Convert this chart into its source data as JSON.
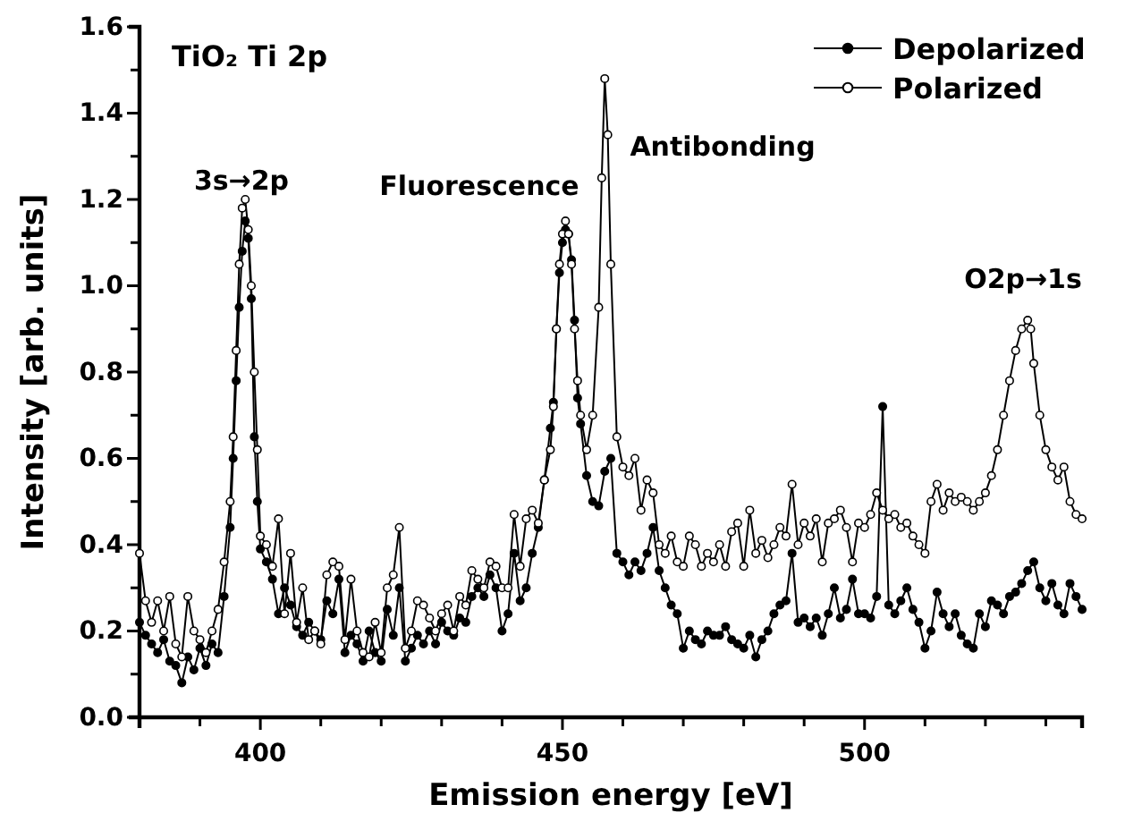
{
  "chart_data": {
    "type": "line",
    "title": "TiO₂ Ti 2p",
    "xlabel": "Emission energy [eV]",
    "ylabel": "Intensity [arb. units]",
    "xlim": [
      380,
      536
    ],
    "ylim": [
      0,
      1.6
    ],
    "xticks": [
      {
        "value": 390,
        "label": null
      },
      {
        "value": 400,
        "label": "400"
      },
      {
        "value": 410,
        "label": null
      },
      {
        "value": 420,
        "label": null
      },
      {
        "value": 430,
        "label": null
      },
      {
        "value": 440,
        "label": null
      },
      {
        "value": 450,
        "label": "450"
      },
      {
        "value": 460,
        "label": null
      },
      {
        "value": 470,
        "label": null
      },
      {
        "value": 480,
        "label": null
      },
      {
        "value": 490,
        "label": null
      },
      {
        "value": 500,
        "label": "500"
      },
      {
        "value": 510,
        "label": null
      },
      {
        "value": 520,
        "label": null
      },
      {
        "value": 530,
        "label": null
      }
    ],
    "yticks": [
      {
        "value": 0,
        "label": "0.0"
      },
      {
        "value": 0.1,
        "label": null
      },
      {
        "value": 0.2,
        "label": "0.2"
      },
      {
        "value": 0.3,
        "label": null
      },
      {
        "value": 0.4,
        "label": "0.4"
      },
      {
        "value": 0.5,
        "label": null
      },
      {
        "value": 0.6,
        "label": "0.6"
      },
      {
        "value": 0.7,
        "label": null
      },
      {
        "value": 0.8,
        "label": "0.8"
      },
      {
        "value": 0.9,
        "label": null
      },
      {
        "value": 1.0,
        "label": "1.0"
      },
      {
        "value": 1.1,
        "label": null
      },
      {
        "value": 1.2,
        "label": "1.2"
      },
      {
        "value": 1.3,
        "label": null
      },
      {
        "value": 1.4,
        "label": "1.4"
      },
      {
        "value": 1.5,
        "label": null
      },
      {
        "value": 1.6,
        "label": "1.6"
      }
    ],
    "grid": false,
    "legend": "top right",
    "marker": "circle",
    "line_style": "solid",
    "annotations": [
      "3s→2p",
      "Fluorescence",
      "Antibonding",
      "O2p→1s"
    ],
    "series": [
      {
        "name": "Depolarized",
        "color": "#000000",
        "x": [
          380,
          381,
          382,
          383,
          384,
          385,
          386,
          387,
          388,
          389,
          390,
          391,
          392,
          393,
          394,
          395,
          395.5,
          396,
          396.5,
          397,
          397.5,
          398,
          398.5,
          399,
          399.5,
          400,
          401,
          402,
          403,
          404,
          405,
          406,
          407,
          408,
          409,
          410,
          411,
          412,
          413,
          414,
          415,
          416,
          417,
          418,
          419,
          420,
          421,
          422,
          423,
          424,
          425,
          426,
          427,
          428,
          429,
          430,
          431,
          432,
          433,
          434,
          435,
          436,
          437,
          438,
          439,
          440,
          441,
          442,
          443,
          444,
          445,
          446,
          447,
          448,
          448.5,
          449,
          449.5,
          450,
          450.5,
          451,
          451.5,
          452,
          452.5,
          453,
          454,
          455,
          456,
          457,
          458,
          459,
          460,
          461,
          462,
          463,
          464,
          465,
          466,
          467,
          468,
          469,
          470,
          471,
          472,
          473,
          474,
          475,
          476,
          477,
          478,
          479,
          480,
          481,
          482,
          483,
          484,
          485,
          486,
          487,
          488,
          489,
          490,
          491,
          492,
          493,
          494,
          495,
          496,
          497,
          498,
          499,
          500,
          501,
          502,
          503,
          504,
          505,
          506,
          507,
          508,
          509,
          510,
          511,
          512,
          513,
          514,
          515,
          516,
          517,
          518,
          519,
          520,
          521,
          522,
          523,
          524,
          525,
          526,
          527,
          528,
          529,
          530,
          531,
          532,
          533,
          534,
          535,
          536
        ],
        "values": [
          0.22,
          0.19,
          0.17,
          0.15,
          0.18,
          0.13,
          0.12,
          0.08,
          0.14,
          0.11,
          0.16,
          0.12,
          0.17,
          0.15,
          0.28,
          0.44,
          0.6,
          0.78,
          0.95,
          1.08,
          1.15,
          1.11,
          0.97,
          0.65,
          0.5,
          0.39,
          0.36,
          0.32,
          0.24,
          0.3,
          0.26,
          0.21,
          0.19,
          0.22,
          0.2,
          0.18,
          0.27,
          0.24,
          0.32,
          0.15,
          0.19,
          0.17,
          0.13,
          0.2,
          0.15,
          0.13,
          0.25,
          0.19,
          0.3,
          0.13,
          0.16,
          0.19,
          0.17,
          0.2,
          0.17,
          0.22,
          0.2,
          0.19,
          0.23,
          0.22,
          0.28,
          0.3,
          0.28,
          0.33,
          0.3,
          0.2,
          0.24,
          0.38,
          0.27,
          0.3,
          0.38,
          0.44,
          0.55,
          0.67,
          0.73,
          0.9,
          1.03,
          1.1,
          1.13,
          1.12,
          1.06,
          0.92,
          0.74,
          0.68,
          0.56,
          0.5,
          0.49,
          0.57,
          0.6,
          0.38,
          0.36,
          0.33,
          0.36,
          0.34,
          0.38,
          0.44,
          0.34,
          0.3,
          0.26,
          0.24,
          0.16,
          0.2,
          0.18,
          0.17,
          0.2,
          0.19,
          0.19,
          0.21,
          0.18,
          0.17,
          0.16,
          0.19,
          0.14,
          0.18,
          0.2,
          0.24,
          0.26,
          0.27,
          0.38,
          0.22,
          0.23,
          0.21,
          0.23,
          0.19,
          0.24,
          0.3,
          0.23,
          0.25,
          0.32,
          0.24,
          0.24,
          0.23,
          0.28,
          0.72,
          0.26,
          0.24,
          0.27,
          0.3,
          0.25,
          0.22,
          0.16,
          0.2,
          0.29,
          0.24,
          0.21,
          0.24,
          0.19,
          0.17,
          0.16,
          0.24,
          0.21,
          0.27,
          0.26,
          0.24,
          0.28,
          0.29,
          0.31,
          0.34,
          0.36,
          0.3,
          0.27,
          0.31,
          0.26,
          0.24,
          0.31,
          0.28,
          0.25
        ]
      },
      {
        "name": "Polarized",
        "color": "#000000",
        "x": [
          380,
          381,
          382,
          383,
          384,
          385,
          386,
          387,
          388,
          389,
          390,
          391,
          392,
          393,
          394,
          395,
          395.5,
          396,
          396.5,
          397,
          397.5,
          398,
          398.5,
          399,
          399.5,
          400,
          401,
          402,
          403,
          404,
          405,
          406,
          407,
          408,
          409,
          410,
          411,
          412,
          413,
          414,
          415,
          416,
          417,
          418,
          419,
          420,
          421,
          422,
          423,
          424,
          425,
          426,
          427,
          428,
          429,
          430,
          431,
          432,
          433,
          434,
          435,
          436,
          437,
          438,
          439,
          440,
          441,
          442,
          443,
          444,
          445,
          446,
          447,
          448,
          448.5,
          449,
          449.5,
          450,
          450.5,
          451,
          451.5,
          452,
          452.5,
          453,
          454,
          455,
          456,
          456.5,
          457,
          457.5,
          458,
          459,
          460,
          461,
          462,
          463,
          464,
          465,
          466,
          467,
          468,
          469,
          470,
          471,
          472,
          473,
          474,
          475,
          476,
          477,
          478,
          479,
          480,
          481,
          482,
          483,
          484,
          485,
          486,
          487,
          488,
          489,
          490,
          491,
          492,
          493,
          494,
          495,
          496,
          497,
          498,
          499,
          500,
          501,
          502,
          503,
          504,
          505,
          506,
          507,
          508,
          509,
          510,
          511,
          512,
          513,
          514,
          515,
          516,
          517,
          518,
          519,
          520,
          521,
          522,
          523,
          524,
          525,
          526,
          527,
          527.5,
          528,
          529,
          530,
          531,
          532,
          533,
          534,
          535,
          536
        ],
        "values": [
          0.38,
          0.27,
          0.22,
          0.27,
          0.2,
          0.28,
          0.17,
          0.14,
          0.28,
          0.2,
          0.18,
          0.15,
          0.2,
          0.25,
          0.36,
          0.5,
          0.65,
          0.85,
          1.05,
          1.18,
          1.2,
          1.13,
          1.0,
          0.8,
          0.62,
          0.42,
          0.4,
          0.35,
          0.46,
          0.24,
          0.38,
          0.22,
          0.3,
          0.18,
          0.2,
          0.17,
          0.33,
          0.36,
          0.35,
          0.18,
          0.32,
          0.2,
          0.15,
          0.14,
          0.22,
          0.15,
          0.3,
          0.33,
          0.44,
          0.16,
          0.2,
          0.27,
          0.26,
          0.23,
          0.2,
          0.24,
          0.26,
          0.2,
          0.28,
          0.26,
          0.34,
          0.32,
          0.3,
          0.36,
          0.35,
          0.3,
          0.3,
          0.47,
          0.35,
          0.46,
          0.48,
          0.45,
          0.55,
          0.62,
          0.72,
          0.9,
          1.05,
          1.12,
          1.15,
          1.12,
          1.05,
          0.9,
          0.78,
          0.7,
          0.62,
          0.7,
          0.95,
          1.25,
          1.48,
          1.35,
          1.05,
          0.65,
          0.58,
          0.56,
          0.6,
          0.48,
          0.55,
          0.52,
          0.4,
          0.38,
          0.42,
          0.36,
          0.35,
          0.42,
          0.4,
          0.35,
          0.38,
          0.36,
          0.4,
          0.35,
          0.43,
          0.45,
          0.35,
          0.48,
          0.38,
          0.41,
          0.37,
          0.4,
          0.44,
          0.42,
          0.54,
          0.4,
          0.45,
          0.42,
          0.46,
          0.36,
          0.45,
          0.46,
          0.48,
          0.44,
          0.36,
          0.45,
          0.44,
          0.47,
          0.52,
          0.48,
          0.46,
          0.47,
          0.44,
          0.45,
          0.42,
          0.4,
          0.38,
          0.5,
          0.54,
          0.48,
          0.52,
          0.5,
          0.51,
          0.5,
          0.48,
          0.5,
          0.52,
          0.56,
          0.62,
          0.7,
          0.78,
          0.85,
          0.9,
          0.92,
          0.9,
          0.82,
          0.7,
          0.62,
          0.58,
          0.55,
          0.58,
          0.5,
          0.47,
          0.46
        ]
      }
    ]
  }
}
